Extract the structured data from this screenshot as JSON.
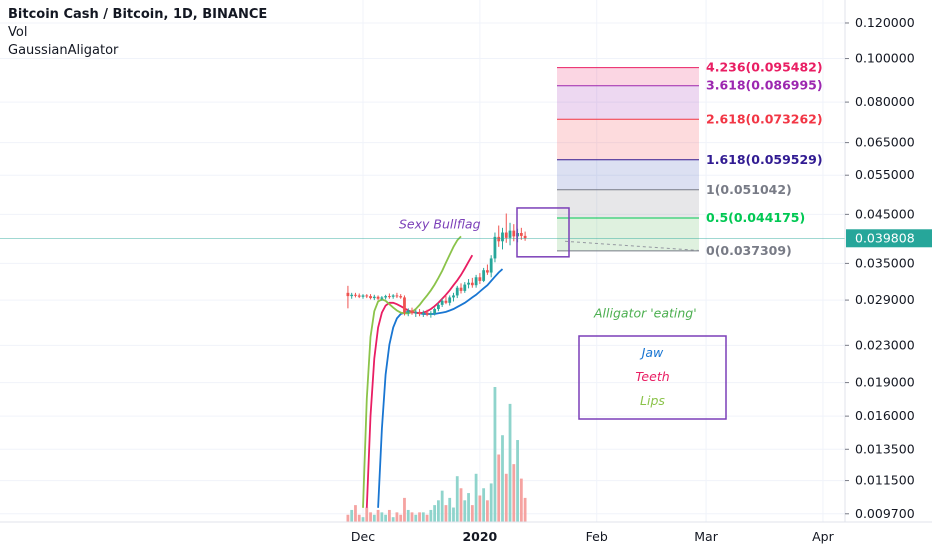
{
  "legend": {
    "title": "Bitcoin Cash / Bitcoin, 1D, BINANCE",
    "line2": "Vol",
    "line3": "GaussianAligator"
  },
  "chart_data": {
    "type": "candlestick",
    "symbol": "Bitcoin Cash / Bitcoin, 1D, BINANCE",
    "scale": "log",
    "ylim": [
      0.0093,
      0.135
    ],
    "price_ticks": [
      0.12,
      0.1,
      0.08,
      0.065,
      0.055,
      0.045,
      0.035,
      0.029,
      0.023,
      0.019,
      0.016,
      0.0135,
      0.0115,
      0.0097
    ],
    "price_tick_labels": [
      "0.120000",
      "0.100000",
      "0.080000",
      "0.065000",
      "0.055000",
      "0.045000",
      "0.035000",
      "0.029000",
      "0.023000",
      "0.019000",
      "0.016000",
      "0.013500",
      "0.011500",
      "0.009700"
    ],
    "current_price": 0.039808,
    "current_price_label": "0.039808",
    "time_axis": {
      "labels": [
        "Dec",
        "2020",
        "Feb",
        "Mar",
        "Apr"
      ],
      "label_days": [
        0,
        31,
        62,
        91,
        122
      ]
    },
    "candles_day_start": -4,
    "candles": [
      [
        0.0301,
        0.0312,
        0.0278,
        0.0296
      ],
      [
        0.0296,
        0.0301,
        0.0292,
        0.0298
      ],
      [
        0.0298,
        0.0301,
        0.0294,
        0.0297
      ],
      [
        0.0297,
        0.03,
        0.0293,
        0.0295
      ],
      [
        0.0295,
        0.0299,
        0.0292,
        0.0297
      ],
      [
        0.0297,
        0.0299,
        0.0293,
        0.0296
      ],
      [
        0.0296,
        0.0299,
        0.0291,
        0.0293
      ],
      [
        0.0293,
        0.0298,
        0.029,
        0.0295
      ],
      [
        0.0295,
        0.0297,
        0.029,
        0.0292
      ],
      [
        0.0292,
        0.0296,
        0.0289,
        0.0294
      ],
      [
        0.0294,
        0.0298,
        0.0291,
        0.0296
      ],
      [
        0.0296,
        0.03,
        0.0292,
        0.0295
      ],
      [
        0.0295,
        0.0299,
        0.0292,
        0.0297
      ],
      [
        0.0297,
        0.0301,
        0.0293,
        0.0296
      ],
      [
        0.0296,
        0.0299,
        0.0292,
        0.0294
      ],
      [
        0.0294,
        0.0297,
        0.0268,
        0.0272
      ],
      [
        0.0272,
        0.0278,
        0.0267,
        0.0275
      ],
      [
        0.0275,
        0.0279,
        0.0269,
        0.0271
      ],
      [
        0.0271,
        0.0276,
        0.0266,
        0.0273
      ],
      [
        0.0273,
        0.0277,
        0.0267,
        0.027
      ],
      [
        0.027,
        0.0275,
        0.0266,
        0.0272
      ],
      [
        0.0272,
        0.0276,
        0.0267,
        0.0269
      ],
      [
        0.0269,
        0.0274,
        0.0265,
        0.0271
      ],
      [
        0.0271,
        0.0279,
        0.0268,
        0.0277
      ],
      [
        0.0277,
        0.0286,
        0.0274,
        0.0283
      ],
      [
        0.0283,
        0.0292,
        0.028,
        0.0289
      ],
      [
        0.0289,
        0.0296,
        0.0284,
        0.0286
      ],
      [
        0.0286,
        0.0297,
        0.0282,
        0.0294
      ],
      [
        0.0294,
        0.0301,
        0.0288,
        0.0297
      ],
      [
        0.0297,
        0.0312,
        0.0293,
        0.0309
      ],
      [
        0.0309,
        0.0316,
        0.03,
        0.0304
      ],
      [
        0.0304,
        0.0318,
        0.0301,
        0.0314
      ],
      [
        0.0314,
        0.0323,
        0.0308,
        0.0317
      ],
      [
        0.0317,
        0.0325,
        0.0309,
        0.0313
      ],
      [
        0.0313,
        0.033,
        0.0309,
        0.0326
      ],
      [
        0.0326,
        0.0333,
        0.0315,
        0.032
      ],
      [
        0.032,
        0.0342,
        0.0318,
        0.0338
      ],
      [
        0.0338,
        0.0348,
        0.033,
        0.0334
      ],
      [
        0.0334,
        0.0365,
        0.0326,
        0.0359
      ],
      [
        0.0359,
        0.041,
        0.0352,
        0.0401
      ],
      [
        0.0401,
        0.0425,
        0.0381,
        0.0392
      ],
      [
        0.0392,
        0.042,
        0.0376,
        0.041
      ],
      [
        0.041,
        0.0452,
        0.0389,
        0.0399
      ],
      [
        0.0399,
        0.0431,
        0.0384,
        0.0414
      ],
      [
        0.0414,
        0.0428,
        0.0392,
        0.0402
      ],
      [
        0.0402,
        0.0418,
        0.039,
        0.0409
      ],
      [
        0.0409,
        0.042,
        0.0395,
        0.0403
      ],
      [
        0.0403,
        0.0412,
        0.0393,
        0.0398
      ]
    ],
    "volume": [
      0.03,
      0.05,
      0.07,
      0.03,
      0.02,
      0.06,
      0.04,
      0.03,
      0.05,
      0.04,
      0.03,
      0.05,
      0.02,
      0.04,
      0.03,
      0.1,
      0.05,
      0.04,
      0.03,
      0.04,
      0.04,
      0.03,
      0.05,
      0.07,
      0.09,
      0.13,
      0.07,
      0.1,
      0.06,
      0.19,
      0.14,
      0.09,
      0.12,
      0.07,
      0.2,
      0.11,
      0.14,
      0.09,
      0.16,
      0.56,
      0.28,
      0.36,
      0.2,
      0.49,
      0.24,
      0.34,
      0.18,
      0.1
    ],
    "volume_max_label": "",
    "indicators": [
      {
        "name": "Jaw",
        "color": "#1976d2",
        "values": [
          null,
          null,
          null,
          null,
          null,
          null,
          null,
          null,
          0.01,
          0.015,
          0.0198,
          0.0231,
          0.0252,
          0.0264,
          0.027,
          0.0272,
          0.0273,
          0.0273,
          0.0272,
          0.0271,
          0.027,
          0.027,
          0.027,
          0.027,
          0.0271,
          0.0272,
          0.0273,
          0.0275,
          0.0277,
          0.028,
          0.0283,
          0.0286,
          0.029,
          0.0294,
          0.0298,
          0.0303,
          0.0308,
          0.0313,
          0.032,
          0.0327,
          0.0334,
          0.034
        ]
      },
      {
        "name": "Teeth",
        "color": "#e91e63",
        "values": [
          null,
          null,
          null,
          null,
          null,
          0.01,
          0.016,
          0.0215,
          0.0252,
          0.0272,
          0.0282,
          0.0286,
          0.0286,
          0.0284,
          0.0281,
          0.0278,
          0.0275,
          0.0273,
          0.0272,
          0.0271,
          0.0272,
          0.0274,
          0.0277,
          0.0281,
          0.0286,
          0.0292,
          0.0298,
          0.0305,
          0.0313,
          0.0321,
          0.033,
          0.0341,
          0.0353,
          0.0365
        ]
      },
      {
        "name": "Lips",
        "color": "#8bc34a",
        "values": [
          null,
          null,
          null,
          null,
          0.01,
          0.0175,
          0.024,
          0.0274,
          0.0288,
          0.0291,
          0.0289,
          0.0284,
          0.0279,
          0.0275,
          0.0272,
          0.0271,
          0.0271,
          0.0273,
          0.0277,
          0.0283,
          0.029,
          0.0297,
          0.0305,
          0.0314,
          0.0325,
          0.0337,
          0.0351,
          0.0366,
          0.0381,
          0.0394,
          0.0402
        ]
      }
    ],
    "fib": {
      "levels": [
        {
          "label": "4.236(0.095482)",
          "price": 0.095482,
          "color": "#e91e63"
        },
        {
          "label": "3.618(0.086995)",
          "price": 0.086995,
          "color": "#9c27b0"
        },
        {
          "label": "2.618(0.073262)",
          "price": 0.073262,
          "color": "#f23645"
        },
        {
          "label": "1.618(0.059529)",
          "price": 0.059529,
          "color": "#311b92"
        },
        {
          "label": "1(0.051042)",
          "price": 0.051042,
          "color": "#787b86"
        },
        {
          "label": "0.5(0.044175)",
          "price": 0.044175,
          "color": "#00c853"
        },
        {
          "label": "0(0.037309)",
          "price": 0.037309,
          "color": "#787b86"
        }
      ],
      "zone_colors": [
        "#e91e63",
        "#9c27b0",
        "#f23645",
        "#3f51b5",
        "#787b86",
        "#4caf50"
      ]
    },
    "annotations": {
      "bullflag": "Sexy Bullflag",
      "alligator": "Alligator 'eating'",
      "legend_box": [
        "Jaw",
        "Teeth",
        "Lips"
      ]
    },
    "colors": {
      "up": "#26a69a",
      "down": "#ef5350",
      "vol_up": "#8fd4cc",
      "vol_down": "#f5a3a1",
      "box": "#7b3fb8",
      "price_line": "#26a69a",
      "price_tag": "#26a69a"
    }
  }
}
